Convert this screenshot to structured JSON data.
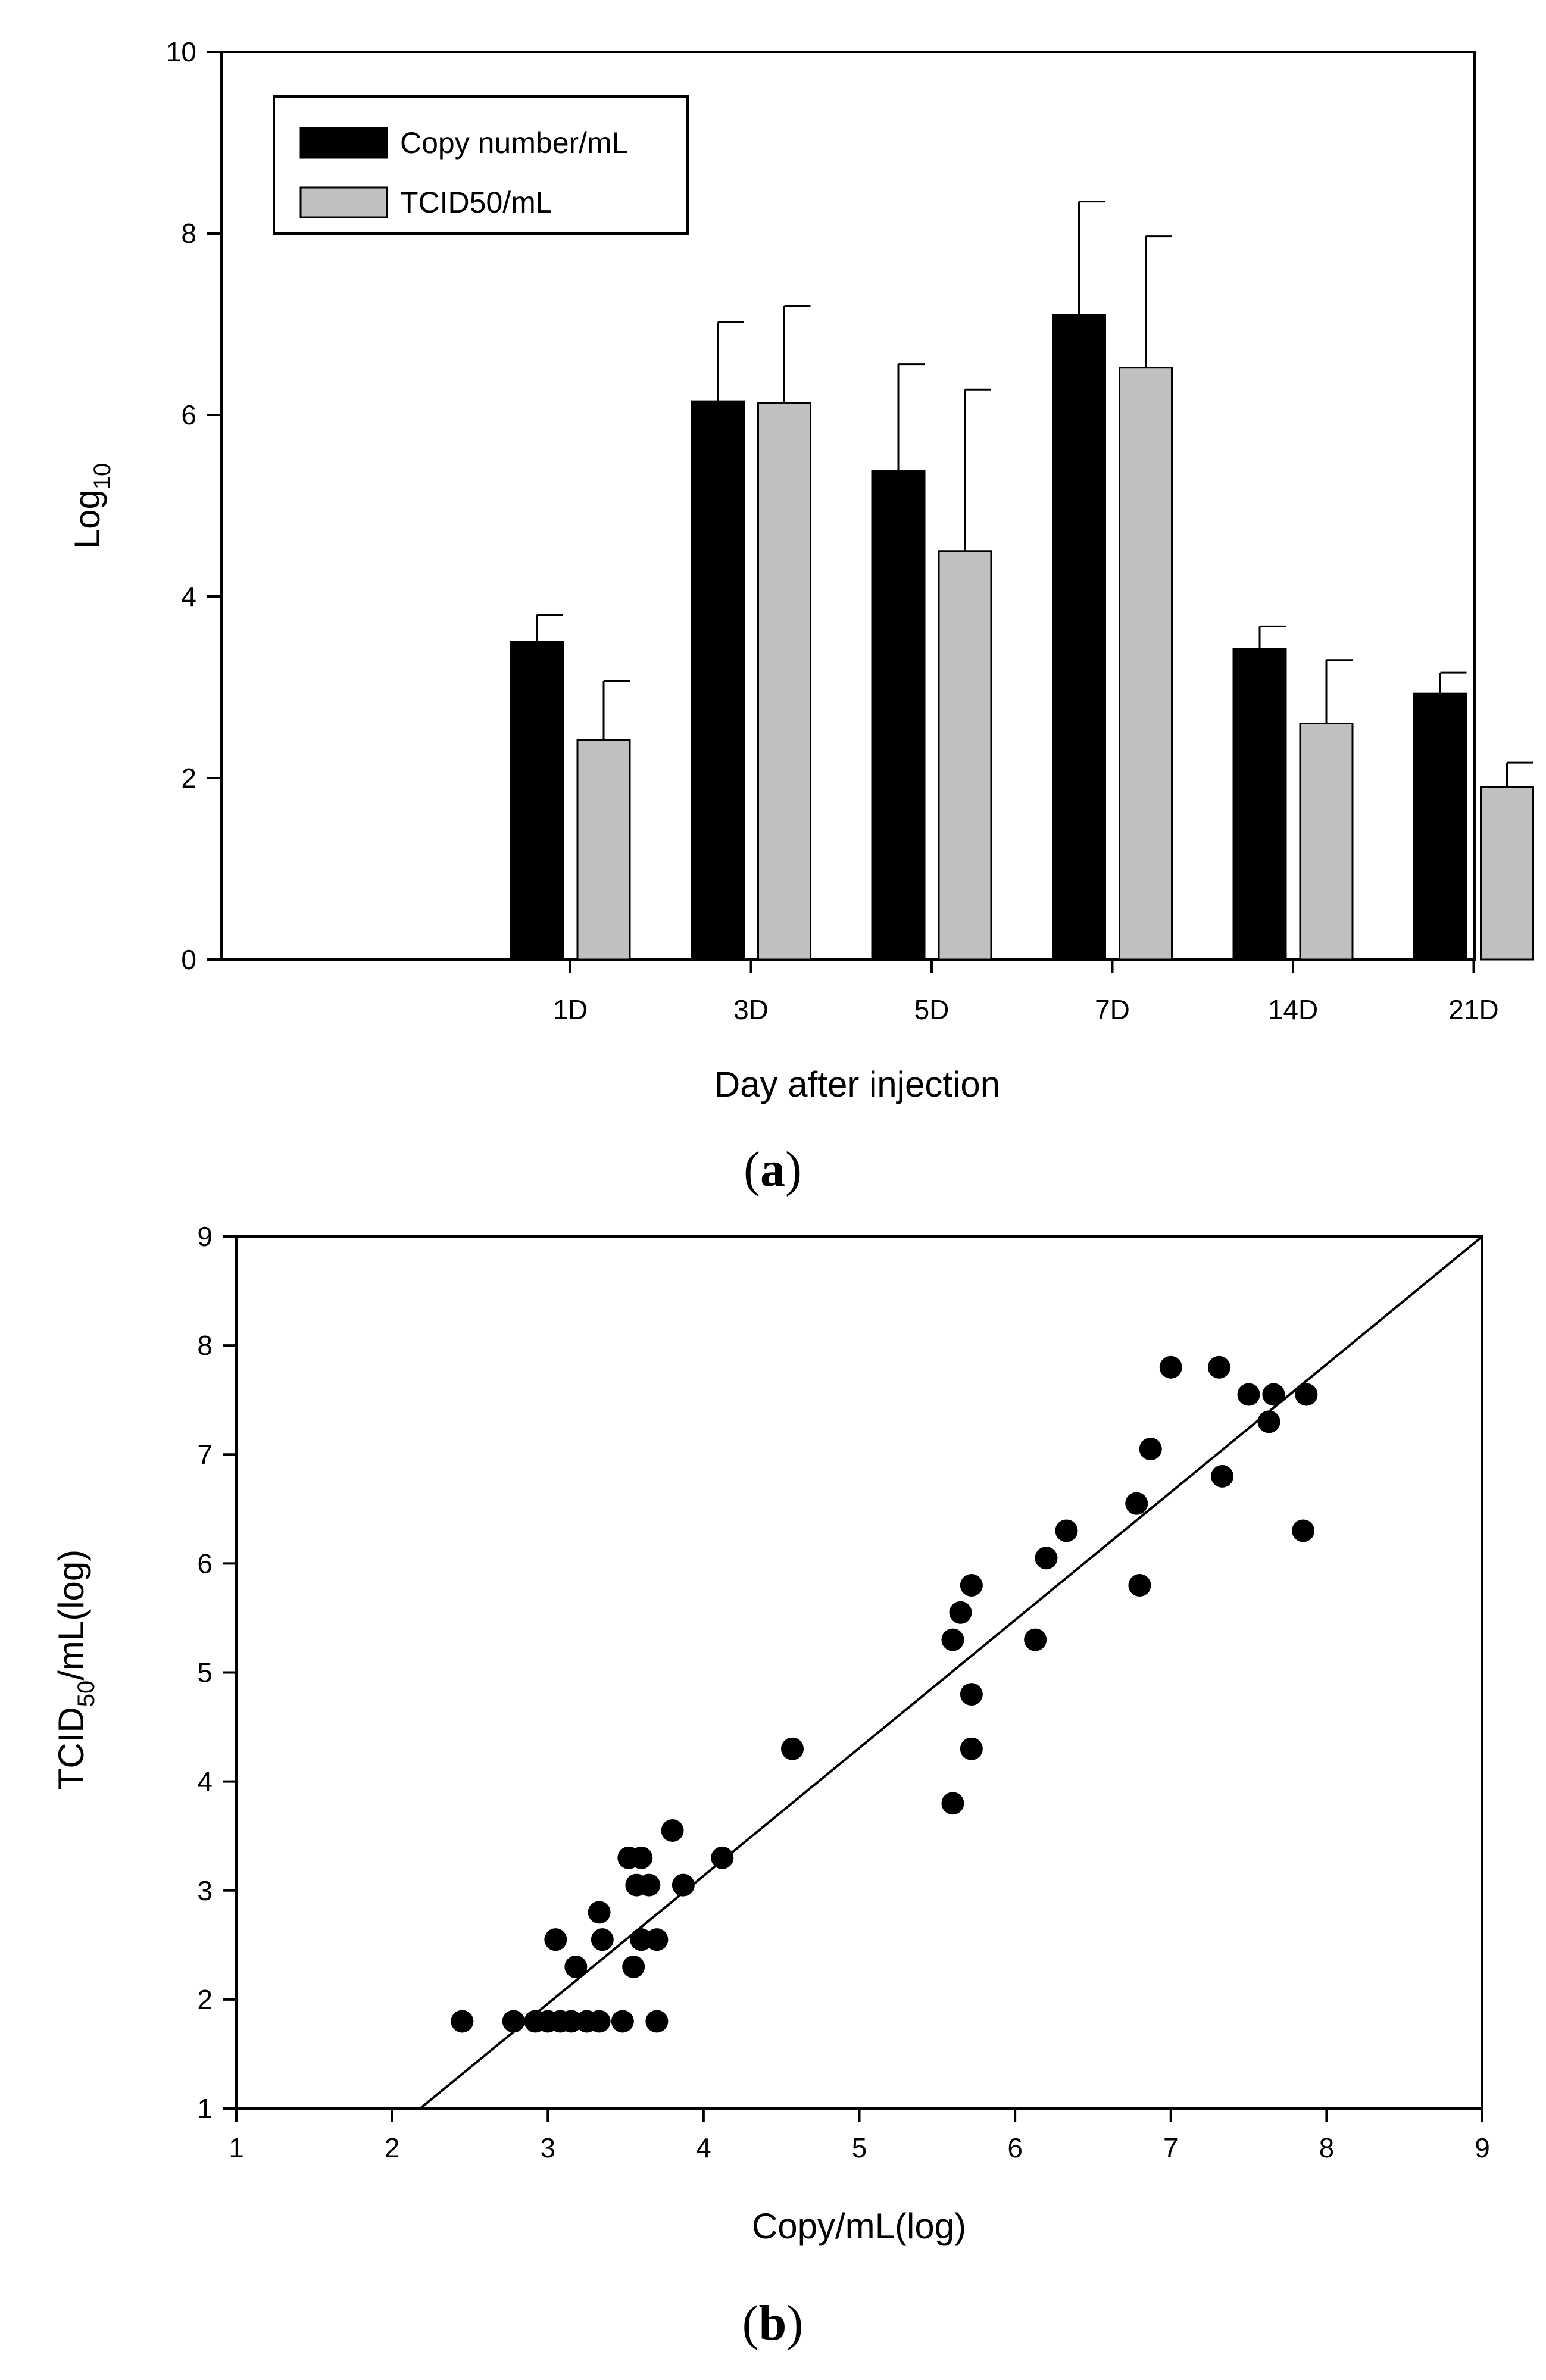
{
  "chart_data": [
    {
      "panel_label": "a",
      "type": "bar",
      "title": "",
      "xlabel": "Day after injection",
      "ylabel_main": "Log",
      "ylabel_sub": "10",
      "ylim": [
        0,
        10
      ],
      "yticks": [
        0,
        2,
        4,
        6,
        8,
        10
      ],
      "grid": false,
      "legend_position": "top-left",
      "categories": [
        "1D",
        "3D",
        "5D",
        "7D",
        "14D",
        "21D"
      ],
      "series": [
        {
          "name": "Copy number/mL",
          "color": "#000000",
          "values": [
            3.5,
            6.15,
            5.38,
            7.1,
            3.42,
            2.93
          ],
          "error": [
            0.3,
            0.87,
            1.18,
            1.25,
            0.25,
            0.23
          ]
        },
        {
          "name": "TCID50/mL",
          "color": "#c0c0c0",
          "values": [
            2.42,
            6.13,
            4.5,
            6.52,
            2.6,
            1.9
          ],
          "error": [
            0.65,
            1.07,
            1.78,
            1.45,
            0.7,
            0.27
          ]
        }
      ]
    },
    {
      "panel_label": "b",
      "type": "scatter",
      "title": "",
      "xlabel": "Copy/mL(log)",
      "ylabel_main": "TCID",
      "ylabel_sub": "50",
      "ylabel_rest": "/mL(log)",
      "xlim": [
        1,
        9
      ],
      "ylim": [
        1,
        9
      ],
      "xticks": [
        1,
        2,
        3,
        4,
        5,
        6,
        7,
        8,
        9
      ],
      "yticks": [
        1,
        2,
        3,
        4,
        5,
        6,
        7,
        8,
        9
      ],
      "grid": false,
      "marker_color": "#000000",
      "fit_line": {
        "x": [
          2.18,
          9.0
        ],
        "y": [
          1.0,
          9.0
        ]
      },
      "points": [
        [
          2.45,
          1.8
        ],
        [
          2.78,
          1.8
        ],
        [
          2.92,
          1.8
        ],
        [
          3.0,
          1.8
        ],
        [
          3.08,
          1.8
        ],
        [
          3.15,
          1.8
        ],
        [
          3.25,
          1.8
        ],
        [
          3.33,
          1.8
        ],
        [
          3.48,
          1.8
        ],
        [
          3.7,
          1.8
        ],
        [
          3.18,
          2.3
        ],
        [
          3.55,
          2.3
        ],
        [
          3.05,
          2.55
        ],
        [
          3.35,
          2.55
        ],
        [
          3.6,
          2.55
        ],
        [
          3.7,
          2.55
        ],
        [
          3.33,
          2.8
        ],
        [
          3.57,
          3.05
        ],
        [
          3.65,
          3.05
        ],
        [
          3.87,
          3.05
        ],
        [
          3.52,
          3.3
        ],
        [
          3.6,
          3.3
        ],
        [
          4.12,
          3.3
        ],
        [
          3.8,
          3.55
        ],
        [
          5.6,
          3.8
        ],
        [
          4.57,
          4.3
        ],
        [
          5.72,
          4.3
        ],
        [
          5.72,
          4.8
        ],
        [
          5.6,
          5.3
        ],
        [
          6.13,
          5.3
        ],
        [
          5.65,
          5.55
        ],
        [
          5.72,
          5.8
        ],
        [
          6.8,
          5.8
        ],
        [
          6.2,
          6.05
        ],
        [
          6.33,
          6.3
        ],
        [
          7.85,
          6.3
        ],
        [
          6.78,
          6.55
        ],
        [
          7.33,
          6.8
        ],
        [
          6.87,
          7.05
        ],
        [
          7.63,
          7.3
        ],
        [
          7.5,
          7.55
        ],
        [
          7.66,
          7.55
        ],
        [
          7.87,
          7.55
        ],
        [
          7.0,
          7.8
        ],
        [
          7.31,
          7.8
        ]
      ]
    }
  ]
}
